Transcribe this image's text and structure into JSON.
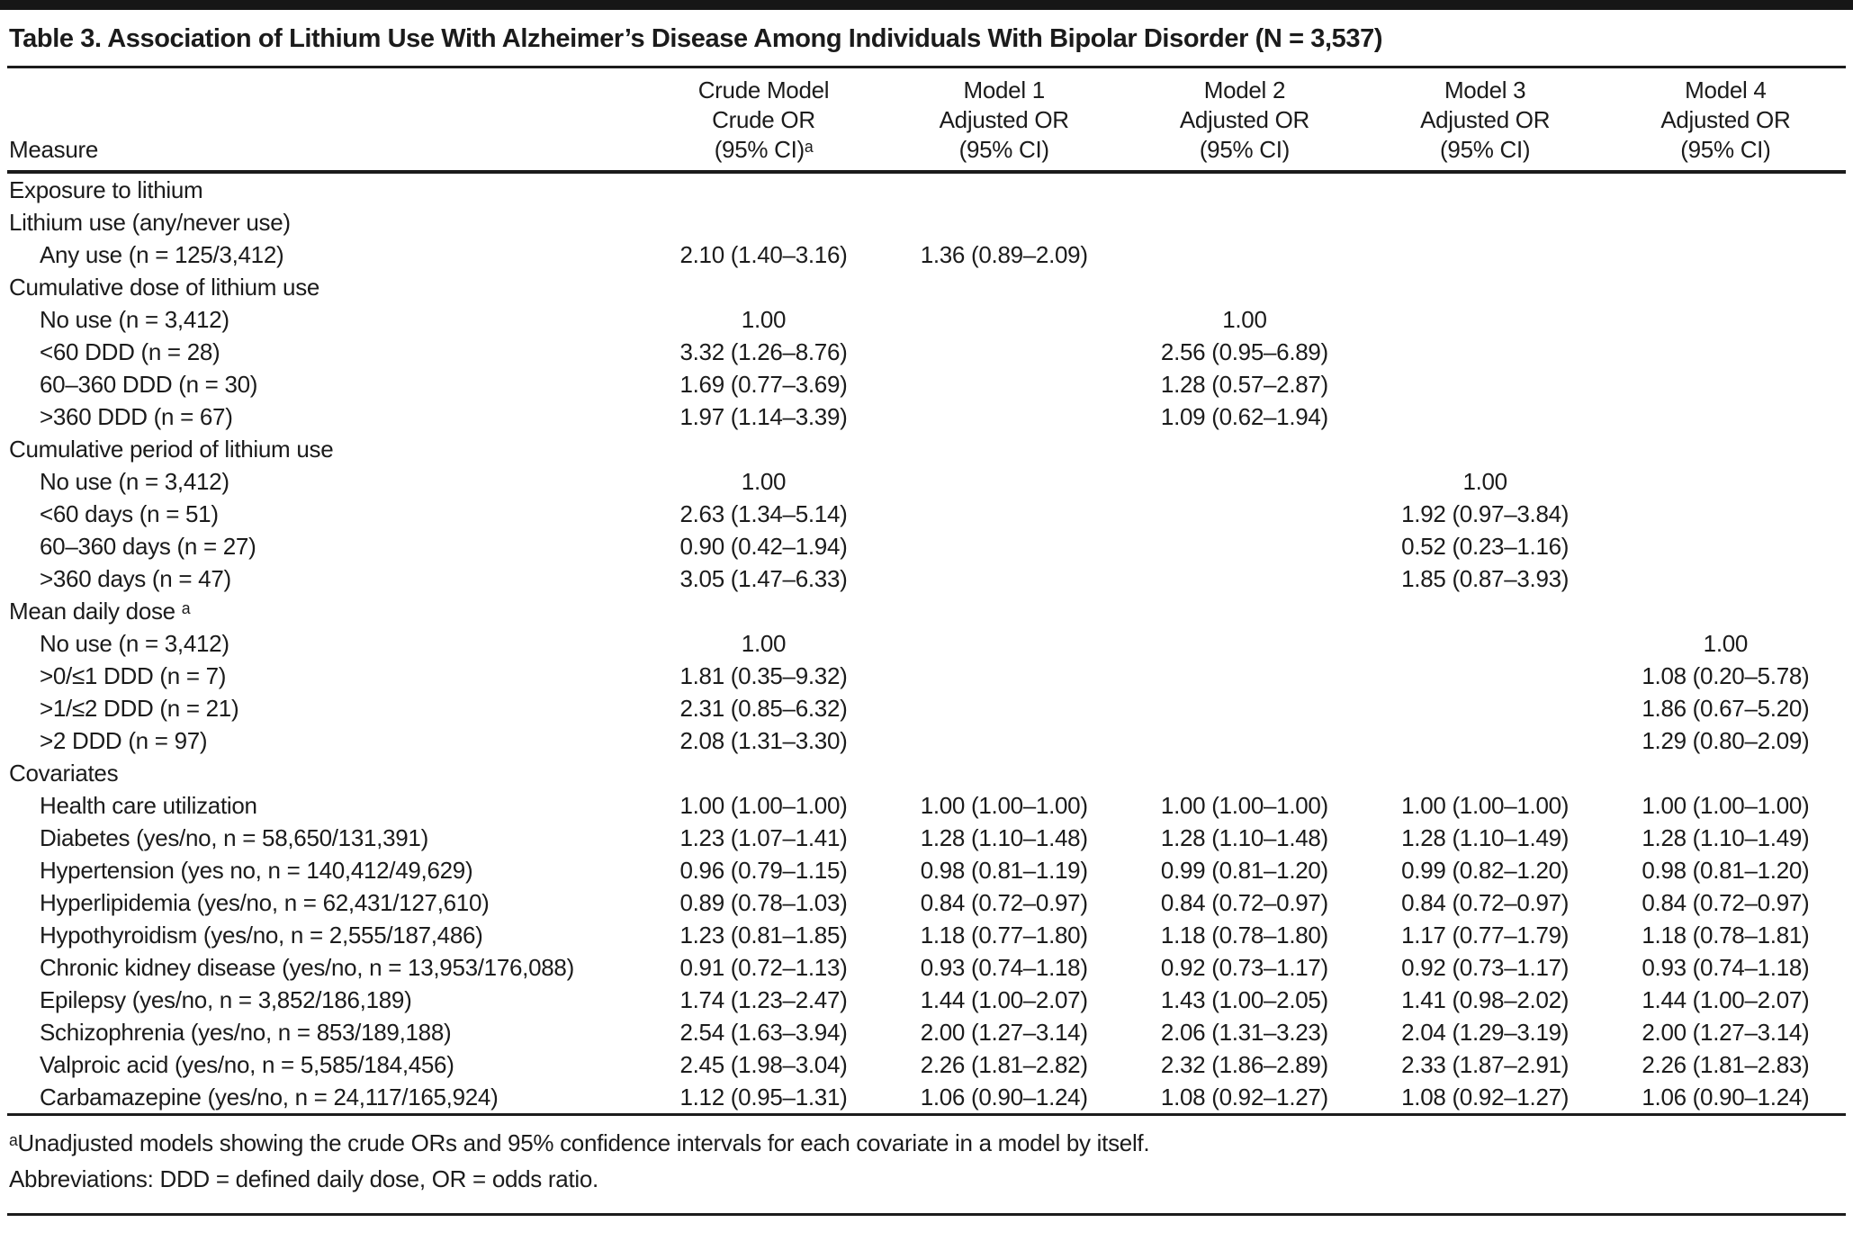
{
  "title": "Table 3. Association of Lithium Use With Alzheimer’s Disease Among Individuals With Bipolar Disorder (N = 3,537)",
  "columns": [
    {
      "lines": [
        "Measure"
      ]
    },
    {
      "lines": [
        "Crude Model",
        "Crude OR",
        "(95% CI)ᵃ"
      ]
    },
    {
      "lines": [
        "Model 1",
        "Adjusted OR",
        "(95% CI)"
      ]
    },
    {
      "lines": [
        "Model 2",
        "Adjusted OR",
        "(95% CI)"
      ]
    },
    {
      "lines": [
        "Model 3",
        "Adjusted OR",
        "(95% CI)"
      ]
    },
    {
      "lines": [
        "Model 4",
        "Adjusted OR",
        "(95% CI)"
      ]
    }
  ],
  "rows": [
    {
      "label": "Exposure to lithium",
      "indent": false,
      "values": [
        "",
        "",
        "",
        "",
        ""
      ]
    },
    {
      "label": "Lithium use (any/never use)",
      "indent": false,
      "values": [
        "",
        "",
        "",
        "",
        ""
      ]
    },
    {
      "label": "Any use (n = 125/3,412)",
      "indent": true,
      "values": [
        "2.10 (1.40–3.16)",
        "1.36 (0.89–2.09)",
        "",
        "",
        ""
      ]
    },
    {
      "label": "Cumulative dose of lithium use",
      "indent": false,
      "values": [
        "",
        "",
        "",
        "",
        ""
      ]
    },
    {
      "label": "No use (n = 3,412)",
      "indent": true,
      "values": [
        "1.00",
        "",
        "1.00",
        "",
        ""
      ]
    },
    {
      "label": "<60 DDD (n = 28)",
      "indent": true,
      "values": [
        "3.32 (1.26–8.76)",
        "",
        "2.56 (0.95–6.89)",
        "",
        ""
      ]
    },
    {
      "label": "60–360 DDD (n = 30)",
      "indent": true,
      "values": [
        "1.69 (0.77–3.69)",
        "",
        "1.28 (0.57–2.87)",
        "",
        ""
      ]
    },
    {
      "label": ">360 DDD (n = 67)",
      "indent": true,
      "values": [
        "1.97 (1.14–3.39)",
        "",
        "1.09 (0.62–1.94)",
        "",
        ""
      ]
    },
    {
      "label": "Cumulative period of lithium use",
      "indent": false,
      "values": [
        "",
        "",
        "",
        "",
        ""
      ]
    },
    {
      "label": "No use (n = 3,412)",
      "indent": true,
      "values": [
        "1.00",
        "",
        "",
        "1.00",
        ""
      ]
    },
    {
      "label": "<60 days (n = 51)",
      "indent": true,
      "values": [
        "2.63 (1.34–5.14)",
        "",
        "",
        "1.92 (0.97–3.84)",
        ""
      ]
    },
    {
      "label": "60–360 days (n = 27)",
      "indent": true,
      "values": [
        "0.90 (0.42–1.94)",
        "",
        "",
        "0.52 (0.23–1.16)",
        ""
      ]
    },
    {
      "label": ">360 days (n = 47)",
      "indent": true,
      "values": [
        "3.05 (1.47–6.33)",
        "",
        "",
        "1.85 (0.87–3.93)",
        ""
      ]
    },
    {
      "label": "Mean daily dose ᵃ",
      "indent": false,
      "values": [
        "",
        "",
        "",
        "",
        ""
      ]
    },
    {
      "label": "No use (n = 3,412)",
      "indent": true,
      "values": [
        "1.00",
        "",
        "",
        "",
        "1.00"
      ]
    },
    {
      "label": ">0/≤1 DDD (n = 7)",
      "indent": true,
      "values": [
        "1.81 (0.35–9.32)",
        "",
        "",
        "",
        "1.08 (0.20–5.78)"
      ]
    },
    {
      "label": ">1/≤2 DDD (n = 21)",
      "indent": true,
      "values": [
        "2.31 (0.85–6.32)",
        "",
        "",
        "",
        "1.86 (0.67–5.20)"
      ]
    },
    {
      "label": ">2 DDD (n = 97)",
      "indent": true,
      "values": [
        "2.08 (1.31–3.30)",
        "",
        "",
        "",
        "1.29 (0.80–2.09)"
      ]
    },
    {
      "label": "Covariates",
      "indent": false,
      "values": [
        "",
        "",
        "",
        "",
        ""
      ]
    },
    {
      "label": "Health care utilization",
      "indent": true,
      "values": [
        "1.00 (1.00–1.00)",
        "1.00 (1.00–1.00)",
        "1.00 (1.00–1.00)",
        "1.00 (1.00–1.00)",
        "1.00 (1.00–1.00)"
      ]
    },
    {
      "label": "Diabetes (yes/no, n = 58,650/131,391)",
      "indent": true,
      "values": [
        "1.23 (1.07–1.41)",
        "1.28 (1.10–1.48)",
        "1.28 (1.10–1.48)",
        "1.28 (1.10–1.49)",
        "1.28 (1.10–1.49)"
      ]
    },
    {
      "label": "Hypertension (yes no, n = 140,412/49,629)",
      "indent": true,
      "values": [
        "0.96 (0.79–1.15)",
        "0.98 (0.81–1.19)",
        "0.99 (0.81–1.20)",
        "0.99 (0.82–1.20)",
        "0.98 (0.81–1.20)"
      ]
    },
    {
      "label": "Hyperlipidemia (yes/no, n = 62,431/127,610)",
      "indent": true,
      "values": [
        "0.89 (0.78–1.03)",
        "0.84 (0.72–0.97)",
        "0.84 (0.72–0.97)",
        "0.84 (0.72–0.97)",
        "0.84 (0.72–0.97)"
      ]
    },
    {
      "label": "Hypothyroidism (yes/no, n = 2,555/187,486)",
      "indent": true,
      "values": [
        "1.23 (0.81–1.85)",
        "1.18 (0.77–1.80)",
        "1.18 (0.78–1.80)",
        "1.17 (0.77–1.79)",
        "1.18 (0.78–1.81)"
      ]
    },
    {
      "label": "Chronic kidney disease (yes/no, n = 13,953/176,088)",
      "indent": true,
      "values": [
        "0.91 (0.72–1.13)",
        "0.93 (0.74–1.18)",
        "0.92 (0.73–1.17)",
        "0.92 (0.73–1.17)",
        "0.93 (0.74–1.18)"
      ]
    },
    {
      "label": "Epilepsy (yes/no, n = 3,852/186,189)",
      "indent": true,
      "values": [
        "1.74 (1.23–2.47)",
        "1.44 (1.00–2.07)",
        "1.43 (1.00–2.05)",
        "1.41 (0.98–2.02)",
        "1.44 (1.00–2.07)"
      ]
    },
    {
      "label": "Schizophrenia (yes/no, n = 853/189,188)",
      "indent": true,
      "values": [
        "2.54 (1.63–3.94)",
        "2.00 (1.27–3.14)",
        "2.06 (1.31–3.23)",
        "2.04 (1.29–3.19)",
        "2.00 (1.27–3.14)"
      ]
    },
    {
      "label": "Valproic acid (yes/no, n = 5,585/184,456)",
      "indent": true,
      "values": [
        "2.45 (1.98–3.04)",
        "2.26 (1.81–2.82)",
        "2.32 (1.86–2.89)",
        "2.33 (1.87–2.91)",
        "2.26 (1.81–2.83)"
      ]
    },
    {
      "label": "Carbamazepine (yes/no, n = 24,117/165,924)",
      "indent": true,
      "values": [
        "1.12 (0.95–1.31)",
        "1.06 (0.90–1.24)",
        "1.08 (0.92–1.27)",
        "1.08 (0.92–1.27)",
        "1.06 (0.90–1.24)"
      ]
    }
  ],
  "footnotes": [
    "ᵃUnadjusted models showing the crude ORs and 95% confidence intervals for each covariate in a model by itself.",
    "Abbreviations: DDD = defined daily dose, OR = odds ratio."
  ],
  "colors": {
    "text": "#1b1b1b",
    "rule": "#1c1c1c",
    "background": "#ffffff"
  }
}
